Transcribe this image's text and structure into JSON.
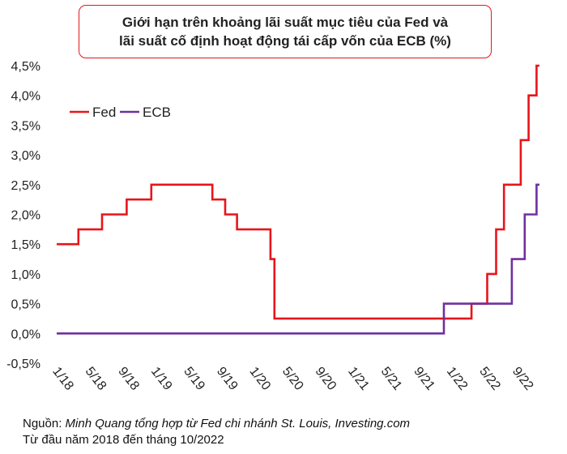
{
  "chart_data": {
    "type": "line",
    "title": [
      "Giới hạn trên khoảng lãi suất mục tiêu của Fed và",
      "lãi suất cố định hoạt động tái cấp vốn của ECB (%)"
    ],
    "xlabel": "",
    "ylabel": "",
    "ylim": [
      -0.5,
      4.5
    ],
    "y_ticks": [
      "-0,5%",
      "0,0%",
      "0,5%",
      "1,0%",
      "1,5%",
      "2,0%",
      "2,5%",
      "3,0%",
      "3,5%",
      "4,0%",
      "4,5%"
    ],
    "xlim": [
      2018.0,
      2022.9
    ],
    "x_ticks": [
      {
        "x": 2018.0,
        "label": "1/18"
      },
      {
        "x": 2018.333,
        "label": "5/18"
      },
      {
        "x": 2018.667,
        "label": "9/18"
      },
      {
        "x": 2019.0,
        "label": "1/19"
      },
      {
        "x": 2019.333,
        "label": "5/19"
      },
      {
        "x": 2019.667,
        "label": "9/19"
      },
      {
        "x": 2020.0,
        "label": "1/20"
      },
      {
        "x": 2020.333,
        "label": "5/20"
      },
      {
        "x": 2020.667,
        "label": "9/20"
      },
      {
        "x": 2021.0,
        "label": "1/21"
      },
      {
        "x": 2021.333,
        "label": "5/21"
      },
      {
        "x": 2021.667,
        "label": "9/21"
      },
      {
        "x": 2022.0,
        "label": "1/22"
      },
      {
        "x": 2022.333,
        "label": "5/22"
      },
      {
        "x": 2022.667,
        "label": "9/22"
      }
    ],
    "legend": {
      "position": "top-left"
    },
    "series": [
      {
        "name": "Fed",
        "color": "#e8141b",
        "step_points": [
          [
            2018.0,
            1.5
          ],
          [
            2018.22,
            1.75
          ],
          [
            2018.46,
            2.0
          ],
          [
            2018.71,
            2.25
          ],
          [
            2018.96,
            2.5
          ],
          [
            2019.58,
            2.25
          ],
          [
            2019.71,
            2.0
          ],
          [
            2019.83,
            1.75
          ],
          [
            2020.17,
            1.25
          ],
          [
            2020.21,
            0.25
          ],
          [
            2022.21,
            0.5
          ],
          [
            2022.37,
            1.0
          ],
          [
            2022.46,
            1.75
          ],
          [
            2022.54,
            2.5
          ],
          [
            2022.71,
            3.25
          ],
          [
            2022.79,
            4.0
          ],
          [
            2022.87,
            4.5
          ],
          [
            2022.9,
            4.5
          ]
        ]
      },
      {
        "name": "ECB",
        "color": "#7030a0",
        "step_points": [
          [
            2018.0,
            0.0
          ],
          [
            2021.92,
            0.0
          ],
          [
            2021.93,
            0.5
          ],
          [
            2022.54,
            0.5
          ],
          [
            2022.62,
            1.25
          ],
          [
            2022.75,
            2.0
          ],
          [
            2022.87,
            2.5
          ],
          [
            2022.9,
            2.5
          ]
        ]
      }
    ]
  },
  "source": {
    "label": "Nguồn:",
    "text": "Minh Quang tổng hợp từ Fed chi nhánh St. Louis, Investing.com",
    "period": "Từ đầu năm 2018 đến tháng 10/2022"
  }
}
